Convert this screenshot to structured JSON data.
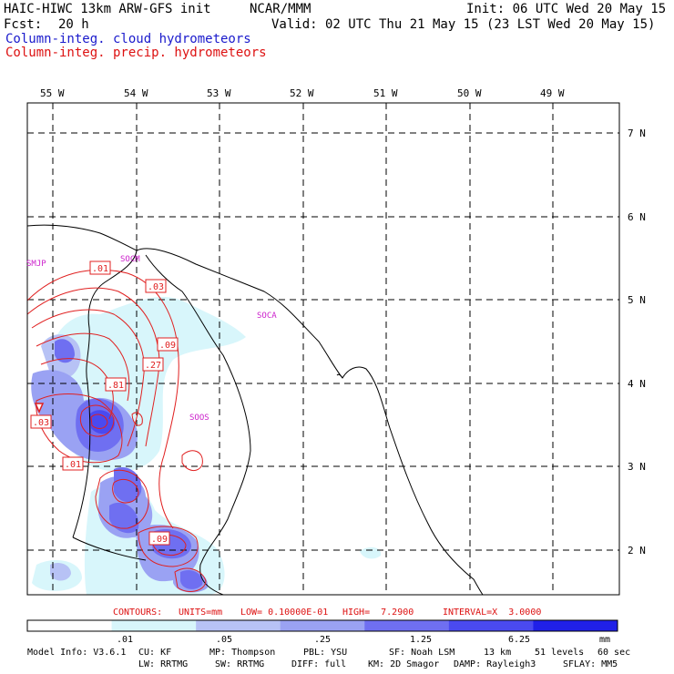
{
  "header": {
    "model_title": "HAIC-HIWC 13km ARW-GFS init",
    "org": "NCAR/MMM",
    "init": "Init: 06 UTC Wed 20 May 15",
    "fcst_label": "Fcst:",
    "fcst_value": "20 h",
    "valid": "Valid: 02 UTC Thu 21 May 15 (23 LST Wed 20 May 15)",
    "field1": "Column-integ. cloud hydrometeors",
    "field2": "Column-integ. precip. hydrometeors"
  },
  "map": {
    "lon_labels": [
      "55 W",
      "54 W",
      "53 W",
      "52 W",
      "51 W",
      "50 W",
      "49 W"
    ],
    "lat_labels": [
      "7 N",
      "6 N",
      "5 N",
      "4 N",
      "3 N",
      "2 N"
    ],
    "stations": [
      "SMJP",
      "SOCM",
      "SOCA",
      "SOOS"
    ],
    "contour_labels": [
      ".01",
      ".03",
      ".09",
      ".27",
      ".81",
      ".03",
      ".01",
      ".09"
    ]
  },
  "contour_info": {
    "contours": "CONTOURS:",
    "units": "UNITS=mm",
    "low": "LOW= 0.10000E-01",
    "high": "HIGH=  7.2900",
    "interval": "INTERVAL=X  3.0000"
  },
  "colorbar": {
    "ticks": [
      ".01",
      ".05",
      ".25",
      "1.25",
      "6.25"
    ],
    "unit": "mm",
    "colors": [
      "#ffffff",
      "#d8f6fb",
      "#b7c2f5",
      "#9aa2f3",
      "#6f6ff1",
      "#4a4af0",
      "#2020e8"
    ]
  },
  "model_info": {
    "row1": [
      "Model Info: V3.6.1",
      "CU: KF",
      "MP: Thompson",
      "PBL: YSU",
      "SF: Noah LSM",
      "13 km",
      "51 levels",
      "60 sec"
    ],
    "row2": [
      "LW: RRTMG",
      "SW: RRTMG",
      "DIFF: full",
      "KM: 2D Smagor",
      "DAMP: Rayleigh3",
      "SFLAY: MM5"
    ]
  }
}
